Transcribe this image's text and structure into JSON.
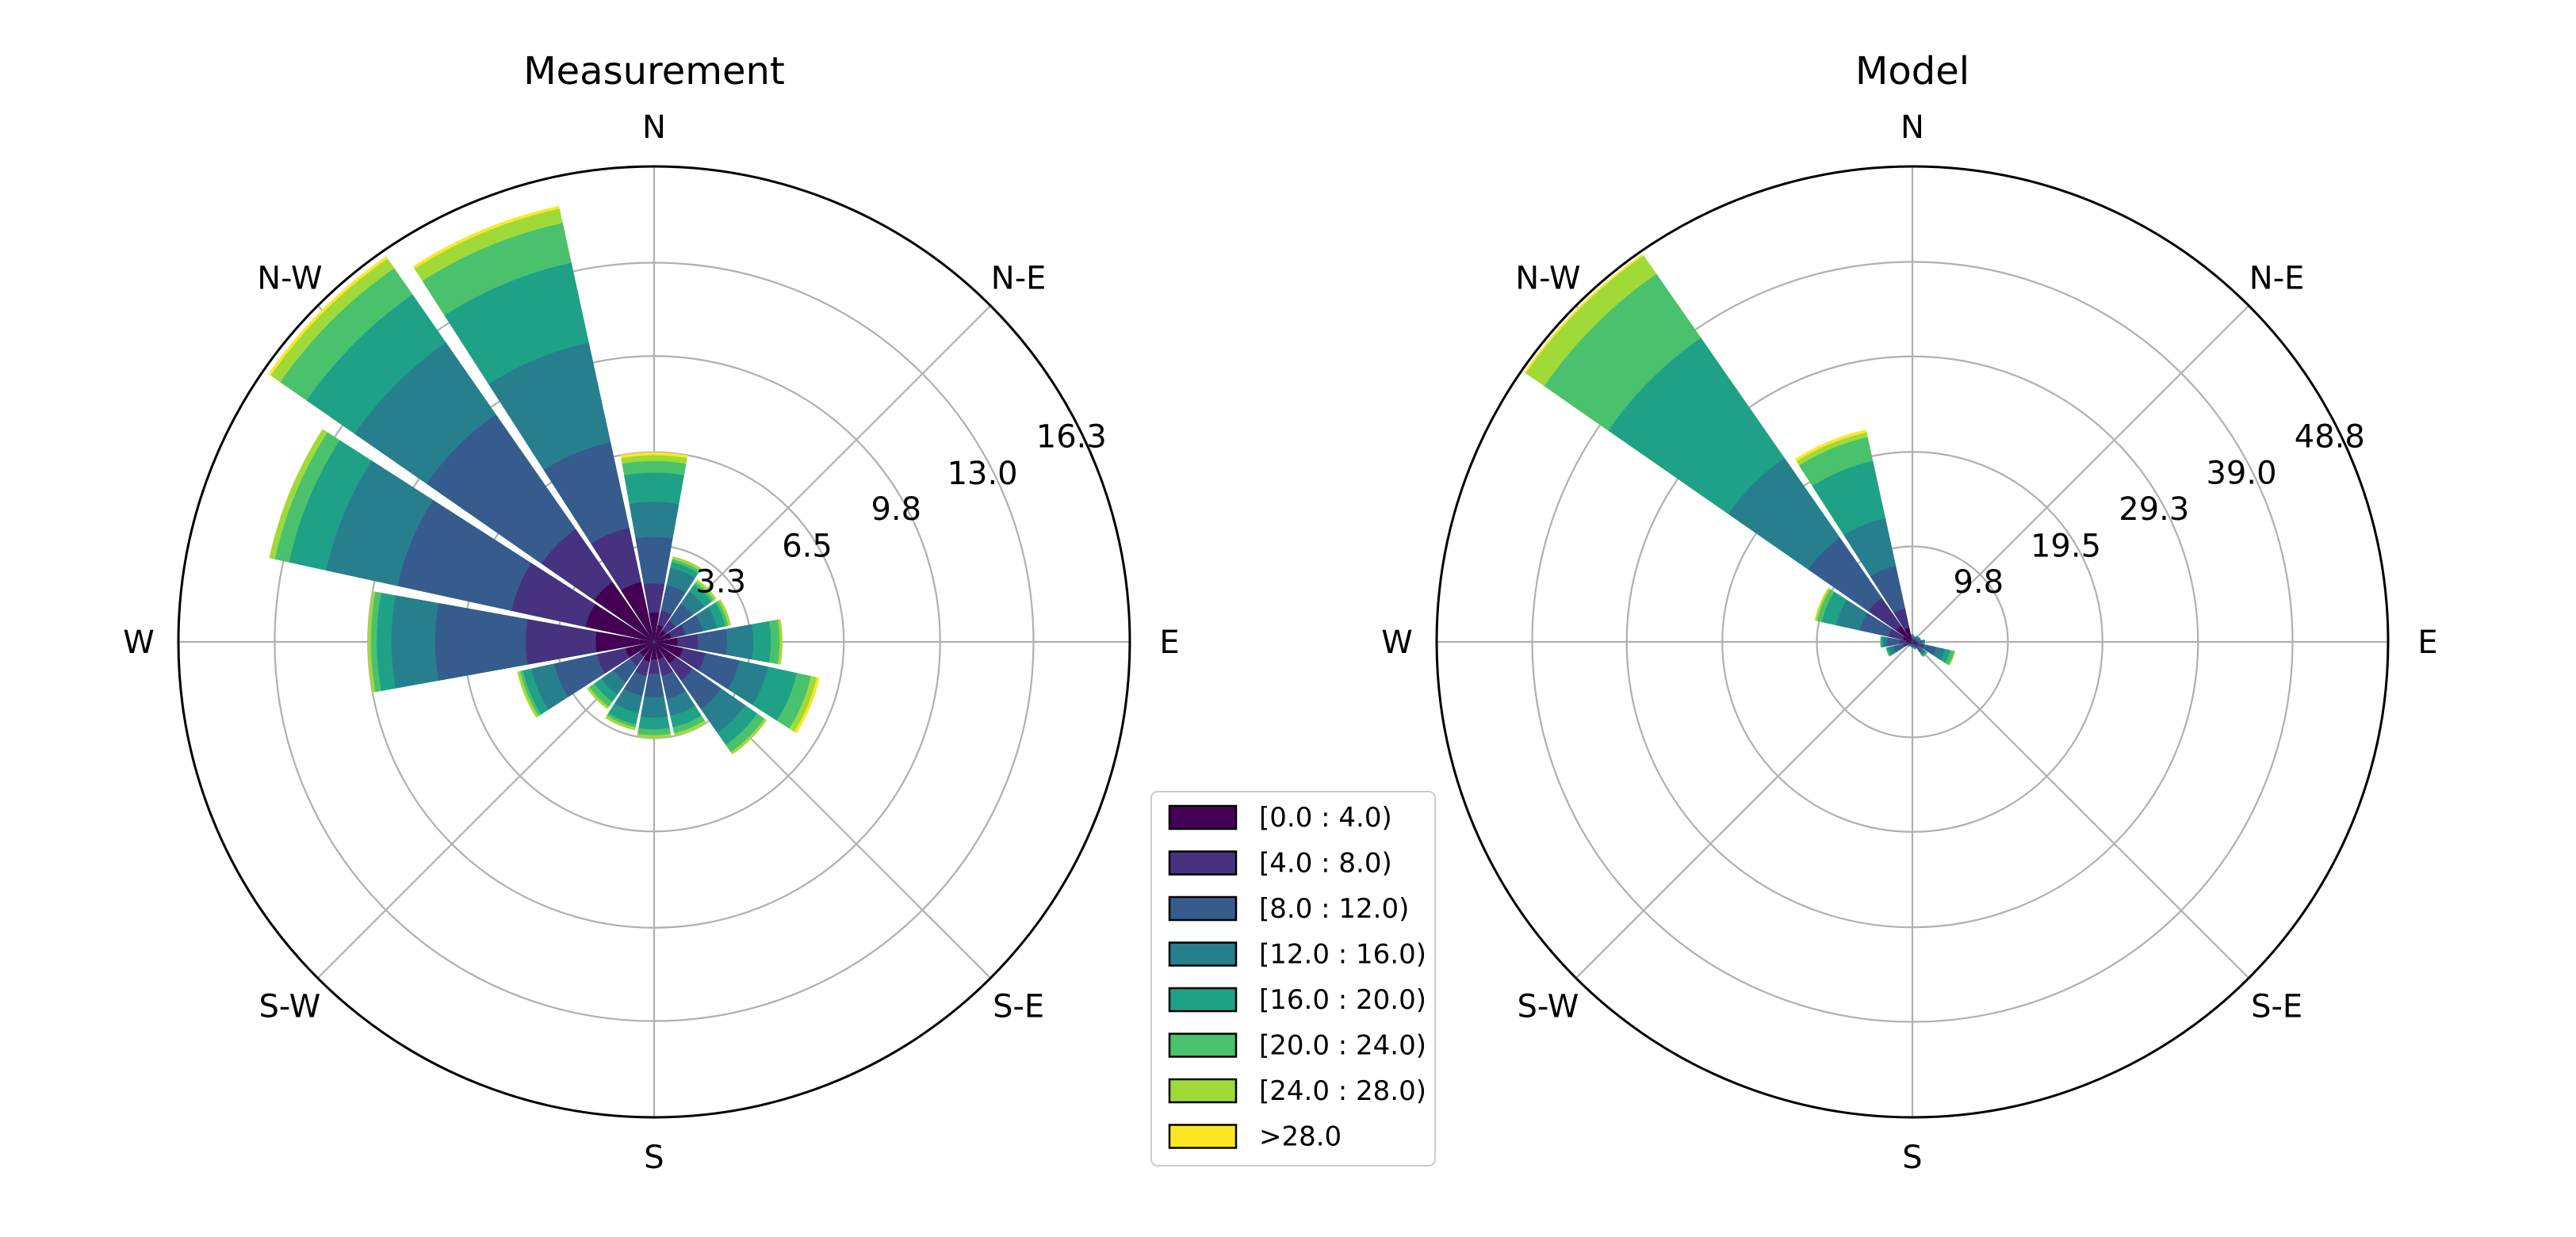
{
  "chart_data": [
    {
      "type": "windrose",
      "title": "Measurement",
      "directions": [
        "N",
        "N-E",
        "E",
        "S-E",
        "S",
        "S-W",
        "W",
        "N-W"
      ],
      "radial_ticks": [
        3.3,
        6.5,
        9.8,
        13.0,
        16.3
      ],
      "rmax": 16.3,
      "sectors": [
        {
          "angle": 0,
          "cum": [
            1.0,
            2.0,
            3.6,
            4.8,
            5.8,
            6.2,
            6.4,
            6.5
          ]
        },
        {
          "angle": 22.5,
          "cum": [
            0.6,
            1.1,
            2.0,
            2.6,
            2.8,
            2.9,
            3.0,
            3.0
          ]
        },
        {
          "angle": 45,
          "cum": [
            0.5,
            0.9,
            1.6,
            2.1,
            2.4,
            2.5,
            2.6,
            2.6
          ]
        },
        {
          "angle": 67.5,
          "cum": [
            0.6,
            1.1,
            1.7,
            2.2,
            2.5,
            2.6,
            2.7,
            2.7
          ]
        },
        {
          "angle": 90,
          "cum": [
            0.8,
            1.5,
            2.5,
            3.4,
            4.0,
            4.3,
            4.4,
            4.4
          ]
        },
        {
          "angle": 112.5,
          "cum": [
            1.0,
            1.8,
            3.0,
            4.0,
            5.0,
            5.5,
            5.7,
            5.8
          ]
        },
        {
          "angle": 135,
          "cum": [
            0.9,
            1.6,
            2.8,
            3.8,
            4.3,
            4.6,
            4.7,
            4.7
          ]
        },
        {
          "angle": 157.5,
          "cum": [
            0.6,
            1.2,
            2.0,
            2.6,
            3.0,
            3.2,
            3.3,
            3.3
          ]
        },
        {
          "angle": 180,
          "cum": [
            0.6,
            1.1,
            1.9,
            2.6,
            3.0,
            3.2,
            3.3,
            3.3
          ]
        },
        {
          "angle": 202.5,
          "cum": [
            0.7,
            1.2,
            1.9,
            2.5,
            2.9,
            3.0,
            3.1,
            3.1
          ]
        },
        {
          "angle": 225,
          "cum": [
            0.6,
            1.0,
            1.7,
            2.2,
            2.5,
            2.7,
            2.8,
            2.8
          ]
        },
        {
          "angle": 247.5,
          "cum": [
            1.0,
            2.0,
            3.5,
            4.3,
            4.6,
            4.7,
            4.8,
            4.8
          ]
        },
        {
          "angle": 270,
          "cum": [
            2.0,
            4.4,
            7.5,
            9.0,
            9.5,
            9.7,
            9.8,
            9.8
          ]
        },
        {
          "angle": 292.5,
          "cum": [
            2.4,
            5.0,
            9.0,
            11.5,
            12.8,
            13.3,
            13.5,
            13.5
          ]
        },
        {
          "angle": 315,
          "cum": [
            2.5,
            4.7,
            9.5,
            12.5,
            14.5,
            15.6,
            16.0,
            16.1
          ]
        },
        {
          "angle": 337.5,
          "cum": [
            2.1,
            4.0,
            7.0,
            10.5,
            13.3,
            14.7,
            15.2,
            15.3
          ]
        }
      ]
    },
    {
      "type": "windrose",
      "title": "Model",
      "directions": [
        "N",
        "N-E",
        "E",
        "S-E",
        "S",
        "S-W",
        "W",
        "N-W"
      ],
      "radial_ticks": [
        9.8,
        19.5,
        29.3,
        39.0,
        48.8
      ],
      "rmax": 48.8,
      "sectors": [
        {
          "angle": 0,
          "cum": [
            0.2,
            0.4,
            0.6,
            0.7,
            0.8,
            0.8,
            0.8,
            0.8
          ]
        },
        {
          "angle": 22.5,
          "cum": [
            0.2,
            0.3,
            0.5,
            0.6,
            0.6,
            0.6,
            0.6,
            0.6
          ]
        },
        {
          "angle": 45,
          "cum": [
            0.2,
            0.4,
            0.6,
            0.7,
            0.8,
            0.8,
            0.8,
            0.8
          ]
        },
        {
          "angle": 67.5,
          "cum": [
            0.2,
            0.4,
            0.7,
            0.8,
            0.9,
            0.9,
            0.9,
            0.9
          ]
        },
        {
          "angle": 90,
          "cum": [
            0.3,
            0.6,
            1.0,
            1.2,
            1.3,
            1.3,
            1.3,
            1.3
          ]
        },
        {
          "angle": 112.5,
          "cum": [
            0.5,
            1.2,
            2.5,
            3.4,
            4.0,
            4.4,
            4.5,
            4.5
          ]
        },
        {
          "angle": 135,
          "cum": [
            0.3,
            0.7,
            1.3,
            1.6,
            1.8,
            1.9,
            1.9,
            1.9
          ]
        },
        {
          "angle": 157.5,
          "cum": [
            0.2,
            0.4,
            0.6,
            0.7,
            0.8,
            0.8,
            0.8,
            0.8
          ]
        },
        {
          "angle": 180,
          "cum": [
            0.2,
            0.3,
            0.5,
            0.6,
            0.6,
            0.6,
            0.6,
            0.6
          ]
        },
        {
          "angle": 202.5,
          "cum": [
            0.2,
            0.3,
            0.4,
            0.5,
            0.5,
            0.5,
            0.5,
            0.5
          ]
        },
        {
          "angle": 225,
          "cum": [
            0.2,
            0.3,
            0.5,
            0.6,
            0.6,
            0.6,
            0.6,
            0.6
          ]
        },
        {
          "angle": 247.5,
          "cum": [
            0.4,
            1.0,
            2.0,
            2.5,
            2.7,
            2.8,
            2.8,
            2.8
          ]
        },
        {
          "angle": 270,
          "cum": [
            0.6,
            1.3,
            2.6,
            3.0,
            3.2,
            3.3,
            3.3,
            3.3
          ]
        },
        {
          "angle": 292.5,
          "cum": [
            1.0,
            2.5,
            5.5,
            8.0,
            9.5,
            10.0,
            10.2,
            10.3
          ]
        },
        {
          "angle": 315,
          "cum": [
            2.0,
            5.5,
            13.0,
            23.0,
            38.0,
            46.0,
            48.3,
            48.5
          ]
        },
        {
          "angle": 337.5,
          "cum": [
            1.5,
            3.5,
            8.0,
            13.0,
            19.0,
            21.5,
            22.0,
            22.3
          ]
        }
      ]
    }
  ],
  "legend": {
    "bins": [
      "[0.0 : 4.0)",
      "[4.0 : 8.0)",
      "[8.0 : 12.0)",
      "[12.0 : 16.0)",
      "[16.0 : 20.0)",
      "[20.0 : 24.0)",
      "[24.0 : 28.0)",
      ">28.0"
    ],
    "colors": [
      "#440154",
      "#46327e",
      "#365c8d",
      "#277f8e",
      "#1fa187",
      "#4ac16d",
      "#a0da39",
      "#fde725"
    ]
  }
}
